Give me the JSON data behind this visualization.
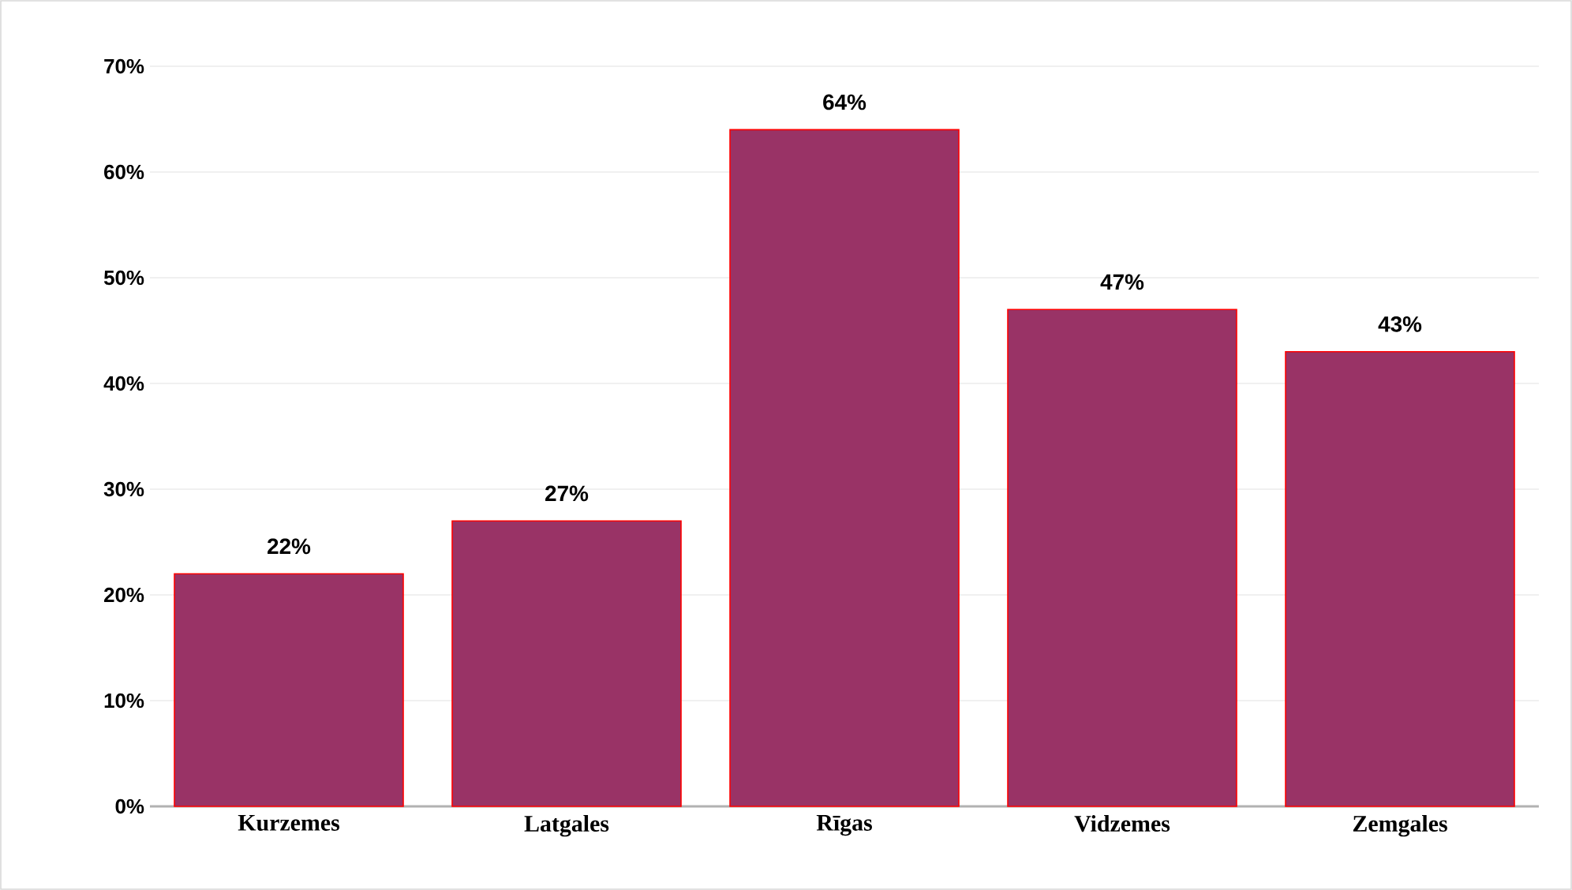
{
  "chart_data": {
    "type": "bar",
    "categories": [
      "Kurzemes",
      "Latgales",
      "Rīgas",
      "Vidzemes",
      "Zemgales"
    ],
    "values": [
      22,
      27,
      64,
      47,
      43
    ],
    "value_labels": [
      "22%",
      "27%",
      "64%",
      "47%",
      "43%"
    ],
    "color": "#993366",
    "ylim": [
      0,
      70
    ],
    "yticks": [
      {
        "value": 0,
        "label": "0%"
      },
      {
        "value": 10,
        "label": "10%"
      },
      {
        "value": 20,
        "label": "20%"
      },
      {
        "value": 30,
        "label": "30%"
      },
      {
        "value": 40,
        "label": "40%"
      },
      {
        "value": 50,
        "label": "50%"
      },
      {
        "value": 60,
        "label": "60%"
      },
      {
        "value": 70,
        "label": "70%"
      }
    ],
    "grid": "y"
  }
}
